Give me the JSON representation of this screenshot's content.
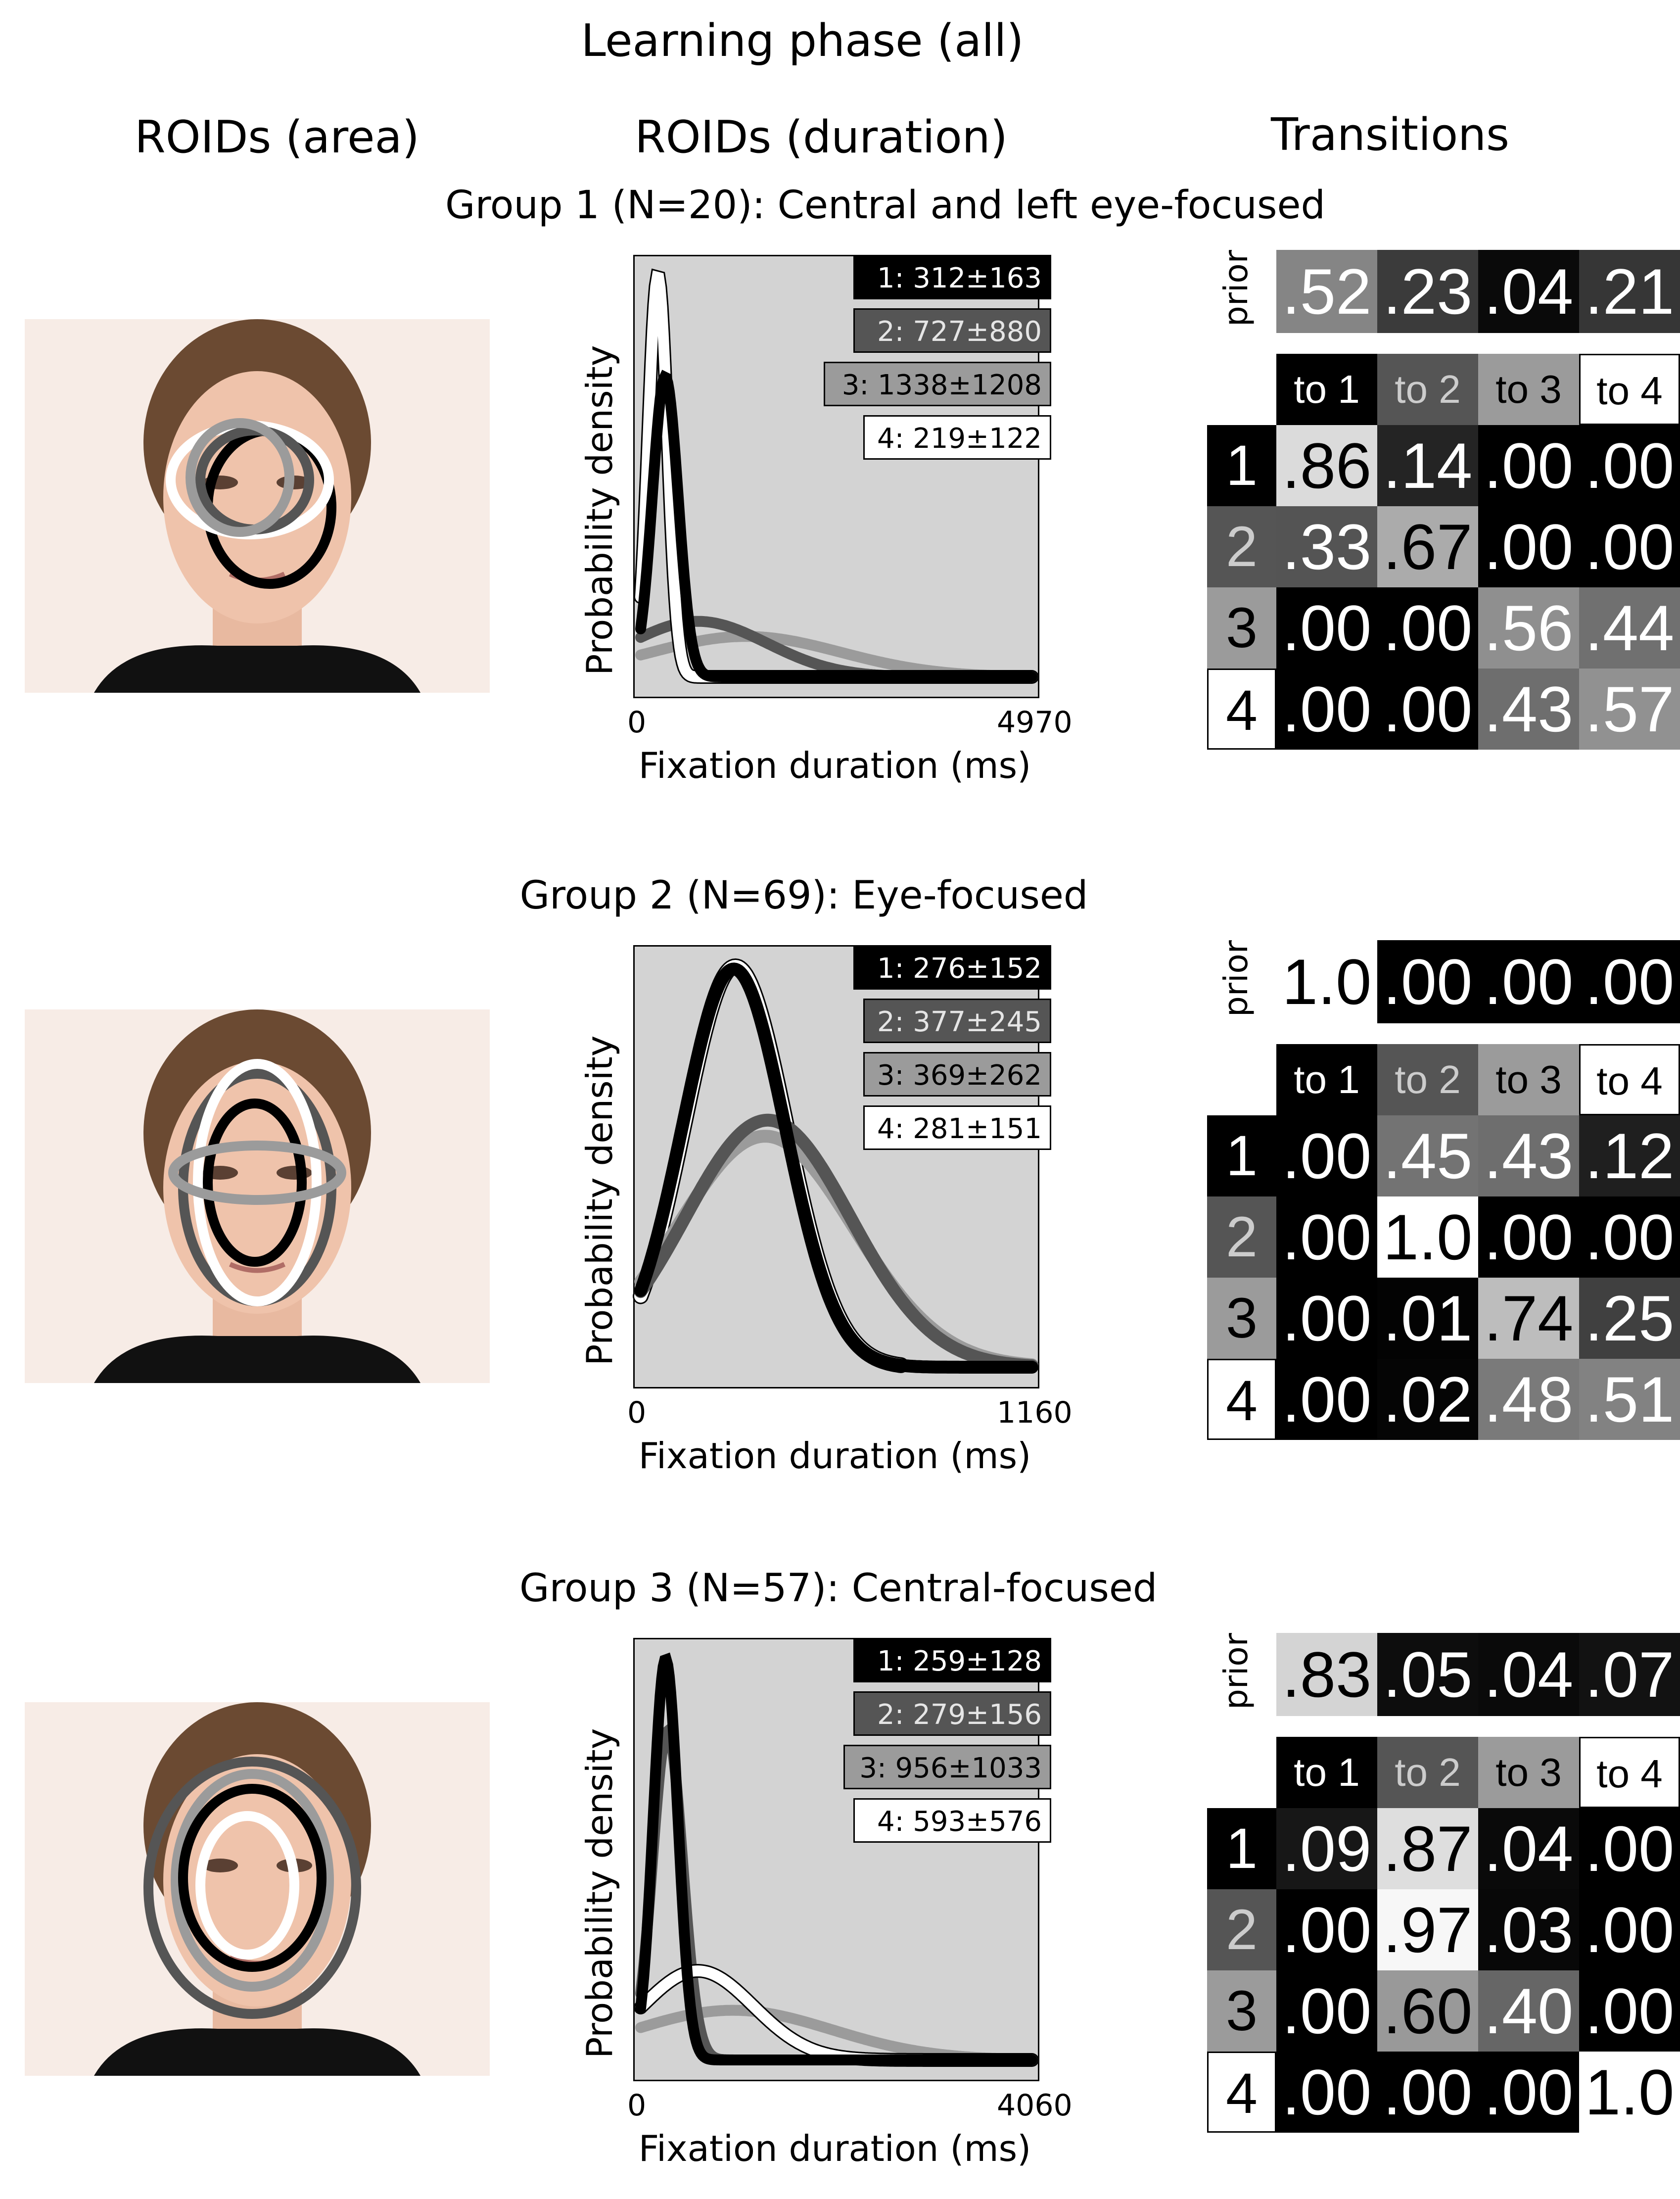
{
  "title": "Learning phase (all)",
  "columns": {
    "area": "ROIDs (area)",
    "duration": "ROIDs (duration)",
    "transitions": "Transitions"
  },
  "axis": {
    "ylabel": "Probability density",
    "xlabel": "Fixation duration (ms)",
    "prior_label": "prior"
  },
  "groups": [
    {
      "title": "Group 1 (N=20): Central and left eye-focused",
      "legend": [
        "1: 312±163",
        "2: 727±880",
        "3: 1338±1208",
        "4: 219±122"
      ],
      "prior": [
        ".52",
        ".23",
        ".04",
        ".21"
      ],
      "headers": [
        "to 1",
        "to 2",
        "to 3",
        "to 4"
      ],
      "rows": [
        "1",
        "2",
        "3",
        "4"
      ],
      "matrix": [
        [
          ".86",
          ".14",
          ".00",
          ".00"
        ],
        [
          ".33",
          ".67",
          ".00",
          ".00"
        ],
        [
          ".00",
          ".00",
          ".56",
          ".44"
        ],
        [
          ".00",
          ".00",
          ".43",
          ".57"
        ]
      ],
      "x_min": "0",
      "x_max": "4970"
    },
    {
      "title": "Group 2 (N=69): Eye-focused",
      "legend": [
        "1: 276±152",
        "2: 377±245",
        "3: 369±262",
        "4: 281±151"
      ],
      "prior": [
        "1.0",
        ".00",
        ".00",
        ".00"
      ],
      "headers": [
        "to 1",
        "to 2",
        "to 3",
        "to 4"
      ],
      "rows": [
        "1",
        "2",
        "3",
        "4"
      ],
      "matrix": [
        [
          ".00",
          ".45",
          ".43",
          ".12"
        ],
        [
          ".00",
          "1.0",
          ".00",
          ".00"
        ],
        [
          ".00",
          ".01",
          ".74",
          ".25"
        ],
        [
          ".00",
          ".02",
          ".48",
          ".51"
        ]
      ],
      "x_min": "0",
      "x_max": "1160"
    },
    {
      "title": "Group 3 (N=57): Central-focused",
      "legend": [
        "1: 259±128",
        "2: 279±156",
        "3: 956±1033",
        "4: 593±576"
      ],
      "prior": [
        ".83",
        ".05",
        ".04",
        ".07"
      ],
      "headers": [
        "to 1",
        "to 2",
        "to 3",
        "to 4"
      ],
      "rows": [
        "1",
        "2",
        "3",
        "4"
      ],
      "matrix": [
        [
          ".09",
          ".87",
          ".04",
          ".00"
        ],
        [
          ".00",
          ".97",
          ".03",
          ".00"
        ],
        [
          ".00",
          ".60",
          ".40",
          ".00"
        ],
        [
          ".00",
          ".00",
          ".00",
          "1.0"
        ]
      ],
      "x_min": "0",
      "x_max": "4060"
    }
  ],
  "colors": {
    "roi1": "#000000",
    "roi2": "#555555",
    "roi3": "#9b9b9b",
    "roi4": "#ffffff",
    "plot_bg": "#d3d3d3"
  },
  "chart_data": [
    {
      "type": "line",
      "title": "Group 1 (N=20): Central and left eye-focused",
      "xlabel": "Fixation duration (ms)",
      "ylabel": "Probability density",
      "xlim": [
        0,
        4970
      ],
      "series": [
        {
          "name": "1",
          "mean": 312,
          "std": 163
        },
        {
          "name": "2",
          "mean": 727,
          "std": 880
        },
        {
          "name": "3",
          "mean": 1338,
          "std": 1208
        },
        {
          "name": "4",
          "mean": 219,
          "std": 122
        }
      ]
    },
    {
      "type": "line",
      "title": "Group 2 (N=69): Eye-focused",
      "xlabel": "Fixation duration (ms)",
      "ylabel": "Probability density",
      "xlim": [
        0,
        1160
      ],
      "series": [
        {
          "name": "1",
          "mean": 276,
          "std": 152
        },
        {
          "name": "2",
          "mean": 377,
          "std": 245
        },
        {
          "name": "3",
          "mean": 369,
          "std": 262
        },
        {
          "name": "4",
          "mean": 281,
          "std": 151
        }
      ]
    },
    {
      "type": "line",
      "title": "Group 3 (N=57): Central-focused",
      "xlabel": "Fixation duration (ms)",
      "ylabel": "Probability density",
      "xlim": [
        0,
        4060
      ],
      "series": [
        {
          "name": "1",
          "mean": 259,
          "std": 128
        },
        {
          "name": "2",
          "mean": 279,
          "std": 156
        },
        {
          "name": "3",
          "mean": 956,
          "std": 1033
        },
        {
          "name": "4",
          "mean": 593,
          "std": 576
        }
      ]
    }
  ]
}
